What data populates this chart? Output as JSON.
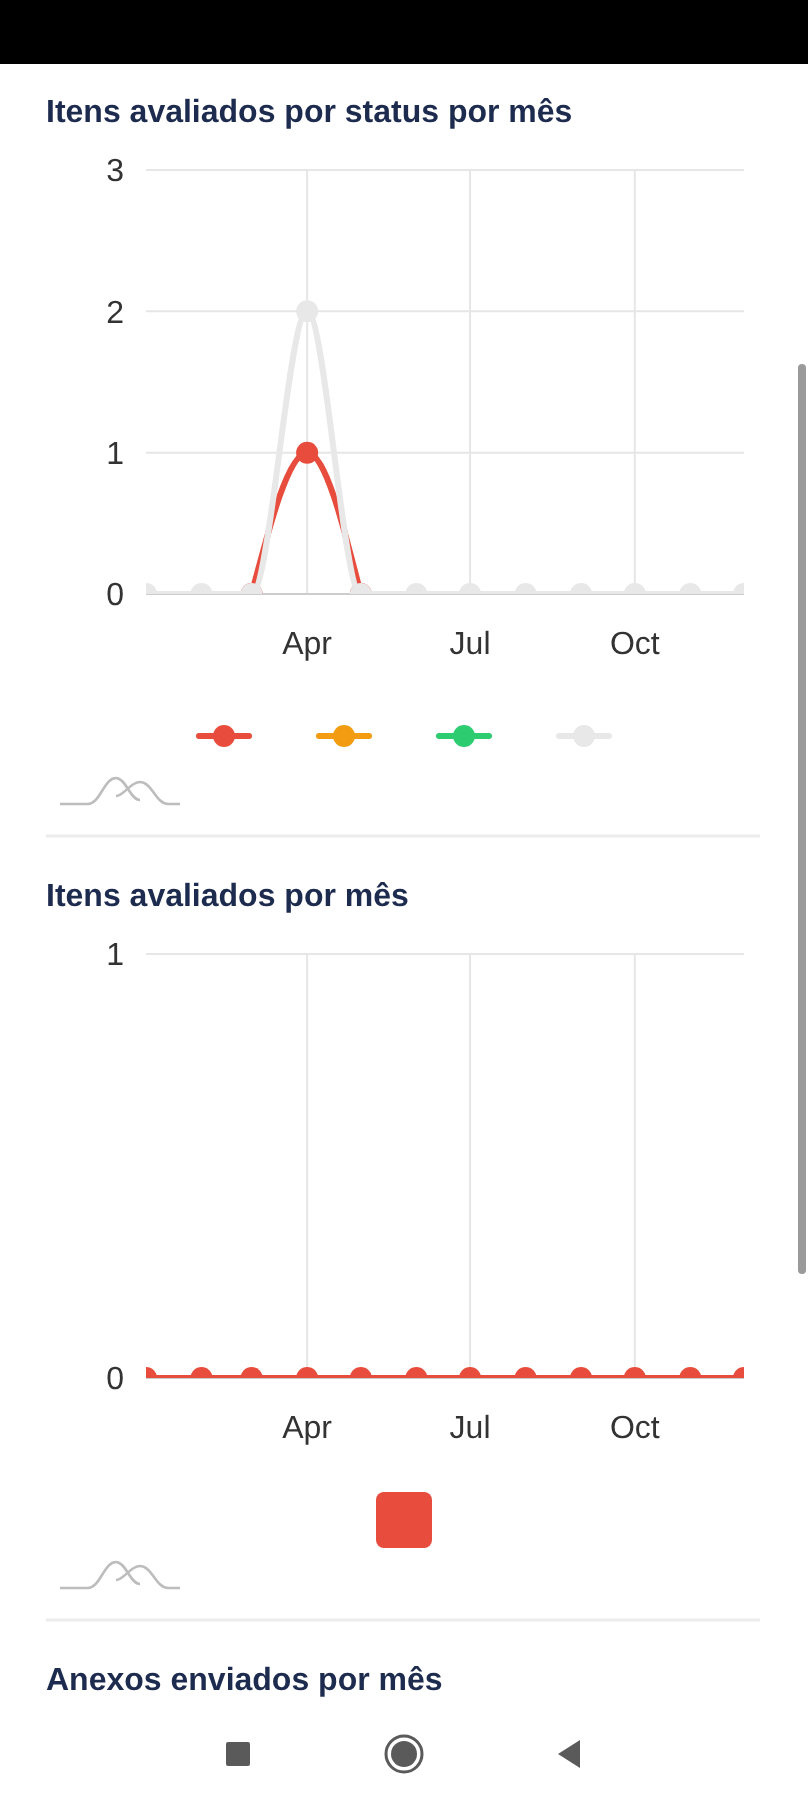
{
  "chart_data": [
    {
      "type": "line",
      "title": "Itens avaliados por status por mês",
      "x": [
        "--01-01",
        "--02-01",
        "--03-01",
        "--04-01",
        "--05-01",
        "--06-01",
        "--07-01",
        "--08-01",
        "--09-01",
        "--10-01",
        "--11-01",
        "--12-01"
      ],
      "xlim": [
        "--01-01",
        "--12-01"
      ],
      "xticks": [
        {
          "value": "--04-01",
          "label": "Apr"
        },
        {
          "value": "--07-01",
          "label": "Jul"
        },
        {
          "value": "--10-01",
          "label": "Oct"
        }
      ],
      "ylim": [
        0,
        3
      ],
      "yticks": [
        0,
        1,
        2,
        3
      ],
      "grid": true,
      "marker": "circle",
      "series": [
        {
          "color": "#e74c3c",
          "values": [
            null,
            null,
            0,
            1,
            0,
            null,
            null,
            null,
            null,
            null,
            null,
            null
          ]
        },
        {
          "color": "#f39c12",
          "values": [
            null,
            null,
            null,
            null,
            null,
            null,
            null,
            null,
            null,
            null,
            null,
            null
          ]
        },
        {
          "color": "#2ecc71",
          "values": [
            null,
            null,
            null,
            null,
            null,
            null,
            null,
            null,
            null,
            null,
            null,
            null
          ]
        },
        {
          "color": "#e8e8e8",
          "values": [
            0,
            0,
            0,
            2,
            0,
            0,
            0,
            0,
            0,
            0,
            0,
            0
          ]
        }
      ]
    },
    {
      "type": "line",
      "title": "Itens avaliados por mês",
      "x": [
        "--01-01",
        "--02-01",
        "--03-01",
        "--04-01",
        "--05-01",
        "--06-01",
        "--07-01",
        "--08-01",
        "--09-01",
        "--10-01",
        "--11-01",
        "--12-01"
      ],
      "xlim": [
        "--01-01",
        "--12-01"
      ],
      "xticks": [
        {
          "value": "--04-01",
          "label": "Apr"
        },
        {
          "value": "--07-01",
          "label": "Jul"
        },
        {
          "value": "--10-01",
          "label": "Oct"
        }
      ],
      "ylim": [
        0,
        1
      ],
      "yticks": [
        0,
        1
      ],
      "grid": true,
      "marker": "circle",
      "series": [
        {
          "color": "#e74c3c",
          "values": [
            0,
            0,
            0,
            0,
            0,
            0,
            0,
            0,
            0,
            0,
            0,
            0
          ]
        }
      ]
    },
    {
      "type": "other",
      "title": "Anexos enviados por mês"
    }
  ]
}
